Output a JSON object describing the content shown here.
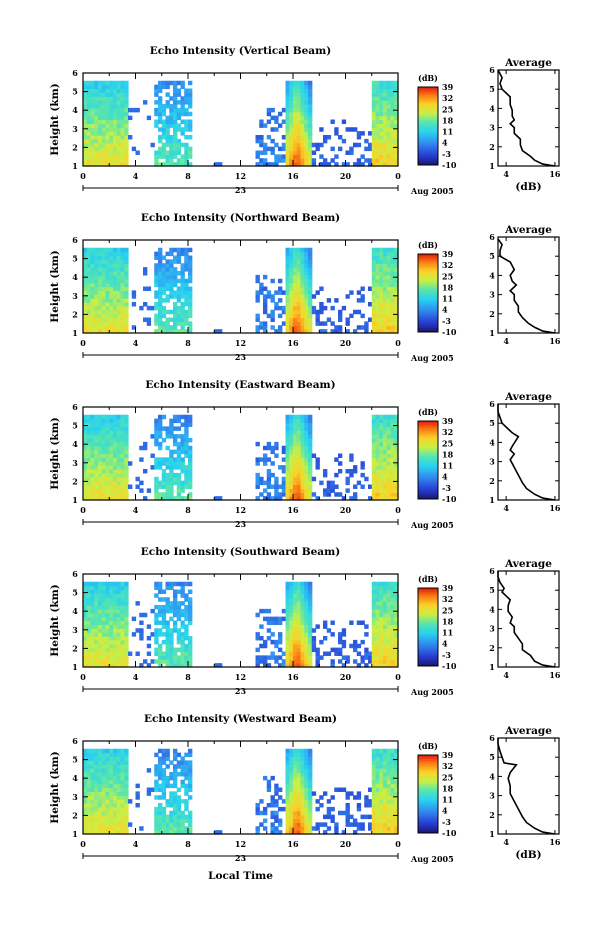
{
  "chart_data": {
    "type": "heatmap",
    "x_axis": {
      "label": "Local Time",
      "ticks": [
        "0",
        "4",
        "8",
        "12",
        "16",
        "20",
        "0"
      ],
      "day_label": "23",
      "date_label": "Aug 2005",
      "range_hours": [
        0,
        24
      ]
    },
    "y_axis": {
      "label": "Height (km)",
      "ticks": [
        "1",
        "2",
        "3",
        "4",
        "5",
        "6"
      ],
      "range_km": [
        1,
        6
      ]
    },
    "colorbar": {
      "unit_label": "(dB)",
      "ticks": [
        "39",
        "32",
        "25",
        "18",
        "11",
        "4",
        "-3",
        "-10"
      ],
      "range_db": [
        -10,
        39
      ]
    },
    "average_axis": {
      "title": "Average",
      "unit_label": "(dB)",
      "xticks": [
        "4",
        "16"
      ],
      "yticks": [
        "1",
        "2",
        "3",
        "4",
        "5",
        "6"
      ]
    },
    "panels": [
      {
        "title": "Echo Intensity (Vertical Beam)",
        "avg_xticks": [
          "4",
          "16"
        ],
        "avg_profile": [
          [
            16,
            1.0
          ],
          [
            13,
            1.1
          ],
          [
            11,
            1.3
          ],
          [
            10,
            1.5
          ],
          [
            8,
            1.8
          ],
          [
            7.5,
            2.1
          ],
          [
            7.5,
            2.4
          ],
          [
            6,
            2.7
          ],
          [
            6,
            3.0
          ],
          [
            5,
            3.2
          ],
          [
            6,
            3.4
          ],
          [
            5.5,
            3.6
          ],
          [
            5.5,
            3.9
          ],
          [
            5,
            4.2
          ],
          [
            5,
            4.6
          ],
          [
            3,
            5.0
          ],
          [
            2.5,
            5.3
          ],
          [
            3,
            5.6
          ],
          [
            2,
            6.0
          ]
        ]
      },
      {
        "title": "Echo Intensity (Northward Beam)",
        "avg_xticks": [
          "4",
          "16"
        ],
        "avg_profile": [
          [
            16,
            1.0
          ],
          [
            13,
            1.1
          ],
          [
            11,
            1.3
          ],
          [
            9.5,
            1.5
          ],
          [
            8,
            1.8
          ],
          [
            7,
            2.1
          ],
          [
            7,
            2.4
          ],
          [
            6,
            2.7
          ],
          [
            6,
            3.0
          ],
          [
            5,
            3.2
          ],
          [
            6.5,
            3.5
          ],
          [
            5.5,
            3.7
          ],
          [
            5,
            4.0
          ],
          [
            6,
            4.3
          ],
          [
            5,
            4.7
          ],
          [
            2.5,
            5.0
          ],
          [
            2.5,
            5.3
          ],
          [
            3,
            5.6
          ],
          [
            2,
            5.9
          ]
        ]
      },
      {
        "title": "Echo Intensity (Eastward Beam)",
        "avg_xticks": [
          "4",
          "16"
        ],
        "avg_profile": [
          [
            16,
            1.0
          ],
          [
            13,
            1.1
          ],
          [
            11,
            1.3
          ],
          [
            9,
            1.6
          ],
          [
            8,
            1.9
          ],
          [
            7,
            2.3
          ],
          [
            6,
            2.7
          ],
          [
            5,
            3.1
          ],
          [
            6,
            3.4
          ],
          [
            5,
            3.6
          ],
          [
            5.5,
            3.8
          ],
          [
            7,
            4.3
          ],
          [
            5.5,
            4.5
          ],
          [
            5,
            4.6
          ],
          [
            3,
            5.0
          ],
          [
            2.5,
            5.3
          ],
          [
            2,
            5.6
          ],
          [
            2,
            6.0
          ]
        ]
      },
      {
        "title": "Echo Intensity (Southward Beam)",
        "avg_xticks": [
          "4",
          "16"
        ],
        "avg_profile": [
          [
            16,
            1.0
          ],
          [
            13,
            1.1
          ],
          [
            11,
            1.3
          ],
          [
            10,
            1.6
          ],
          [
            8,
            1.9
          ],
          [
            8,
            2.2
          ],
          [
            7,
            2.5
          ],
          [
            6,
            2.8
          ],
          [
            6,
            3.1
          ],
          [
            5,
            3.3
          ],
          [
            5.5,
            3.6
          ],
          [
            4.5,
            3.9
          ],
          [
            4.5,
            4.2
          ],
          [
            5,
            4.5
          ],
          [
            3,
            4.9
          ],
          [
            3.5,
            5.1
          ],
          [
            2.5,
            5.4
          ],
          [
            2,
            5.7
          ],
          [
            2,
            6.0
          ]
        ]
      },
      {
        "title": "Echo Intensity (Westward Beam)",
        "avg_xticks": [
          "4",
          "16"
        ],
        "avg_profile": [
          [
            16,
            1.0
          ],
          [
            13,
            1.1
          ],
          [
            11,
            1.3
          ],
          [
            9,
            1.6
          ],
          [
            8,
            1.9
          ],
          [
            7,
            2.3
          ],
          [
            6,
            2.7
          ],
          [
            5,
            3.1
          ],
          [
            5,
            3.5
          ],
          [
            4.5,
            3.9
          ],
          [
            5,
            4.2
          ],
          [
            6.5,
            4.6
          ],
          [
            3.5,
            4.7
          ],
          [
            3,
            5.0
          ],
          [
            2.5,
            5.3
          ],
          [
            2,
            5.7
          ],
          [
            2,
            6.0
          ]
        ]
      }
    ],
    "echo_regions_hours": [
      [
        0,
        3.3
      ],
      [
        5.4,
        8.2
      ],
      [
        13.1,
        17.3
      ],
      [
        17.3,
        22.0
      ],
      [
        22.0,
        24.0
      ]
    ],
    "grid": false,
    "legend": "none"
  }
}
